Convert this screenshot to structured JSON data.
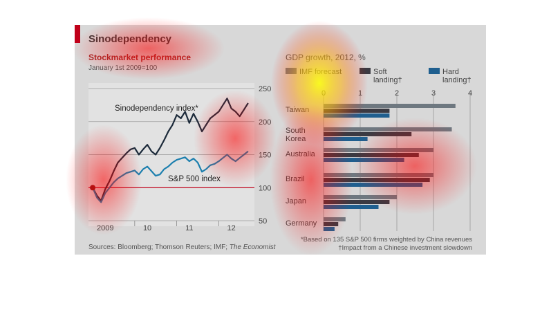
{
  "figure": {
    "title": "Sinodependency",
    "source_text": "Sources: Bloomberg; Thomson Reuters; IMF;",
    "source_italic": "The Economist",
    "note1": "*Based on 135 S&P 500 firms weighted by China revenues",
    "note2": "†Impact from a Chinese investment slowdown",
    "accent_color": "#c0001a"
  },
  "chart_data": [
    {
      "type": "line",
      "title": "Stockmarket performance",
      "subtitle": "January 1st 2009=100",
      "x_ticks": [
        "2009",
        "10",
        "11",
        "12"
      ],
      "ylim": [
        50,
        250
      ],
      "y_ticks": [
        50,
        100,
        150,
        200,
        250
      ],
      "grid": true,
      "series": [
        {
          "name": "Sinodependency index*",
          "color": "#1c2a3a",
          "x": [
            2009.0,
            2009.1,
            2009.2,
            2009.3,
            2009.4,
            2009.5,
            2009.6,
            2009.7,
            2009.8,
            2009.9,
            2010.0,
            2010.1,
            2010.2,
            2010.3,
            2010.4,
            2010.5,
            2010.6,
            2010.7,
            2010.8,
            2010.9,
            2011.0,
            2011.1,
            2011.2,
            2011.3,
            2011.4,
            2011.5,
            2011.6,
            2011.7,
            2011.8,
            2011.9,
            2012.0,
            2012.1,
            2012.2,
            2012.3,
            2012.4,
            2012.5,
            2012.6,
            2012.7
          ],
          "values": [
            100,
            88,
            80,
            98,
            110,
            125,
            138,
            145,
            152,
            158,
            160,
            150,
            158,
            165,
            155,
            150,
            160,
            172,
            185,
            195,
            210,
            205,
            215,
            198,
            212,
            200,
            185,
            195,
            205,
            210,
            215,
            225,
            235,
            220,
            215,
            208,
            218,
            228
          ]
        },
        {
          "name": "S&P 500 index",
          "color": "#1b7fae",
          "x": [
            2009.0,
            2009.1,
            2009.2,
            2009.3,
            2009.4,
            2009.5,
            2009.6,
            2009.7,
            2009.8,
            2009.9,
            2010.0,
            2010.1,
            2010.2,
            2010.3,
            2010.4,
            2010.5,
            2010.6,
            2010.7,
            2010.8,
            2010.9,
            2011.0,
            2011.1,
            2011.2,
            2011.3,
            2011.4,
            2011.5,
            2011.6,
            2011.7,
            2011.8,
            2011.9,
            2012.0,
            2012.1,
            2012.2,
            2012.3,
            2012.4,
            2012.5,
            2012.6,
            2012.7
          ],
          "values": [
            100,
            85,
            78,
            92,
            100,
            108,
            114,
            118,
            122,
            124,
            126,
            120,
            128,
            132,
            125,
            118,
            120,
            128,
            132,
            138,
            142,
            144,
            146,
            140,
            144,
            138,
            124,
            128,
            134,
            136,
            140,
            145,
            150,
            144,
            140,
            145,
            150,
            155
          ]
        }
      ]
    },
    {
      "type": "bar",
      "title": "GDP growth, 2012, %",
      "categories": [
        "Taiwan",
        "South Korea",
        "Australia",
        "Brazil",
        "Japan",
        "Germany"
      ],
      "xlim": [
        0,
        4
      ],
      "x_ticks": [
        0,
        1,
        2,
        3,
        4
      ],
      "series": [
        {
          "name": "IMF forecast",
          "color": "#6e7880",
          "values": [
            3.6,
            3.5,
            3.0,
            3.0,
            2.0,
            0.6
          ]
        },
        {
          "name": "Soft landing†",
          "color": "#3a3a42",
          "values": [
            1.8,
            2.4,
            2.6,
            2.9,
            1.8,
            0.4
          ]
        },
        {
          "name": "Hard landing†",
          "color": "#1f5f8f",
          "values": [
            1.8,
            1.2,
            2.2,
            2.7,
            1.5,
            0.3
          ]
        }
      ],
      "legend": {
        "labels": [
          [
            "IMF forecast",
            ""
          ],
          [
            "Soft",
            "landing†"
          ],
          [
            "Hard",
            "landing†"
          ]
        ],
        "placement": "top"
      }
    }
  ]
}
